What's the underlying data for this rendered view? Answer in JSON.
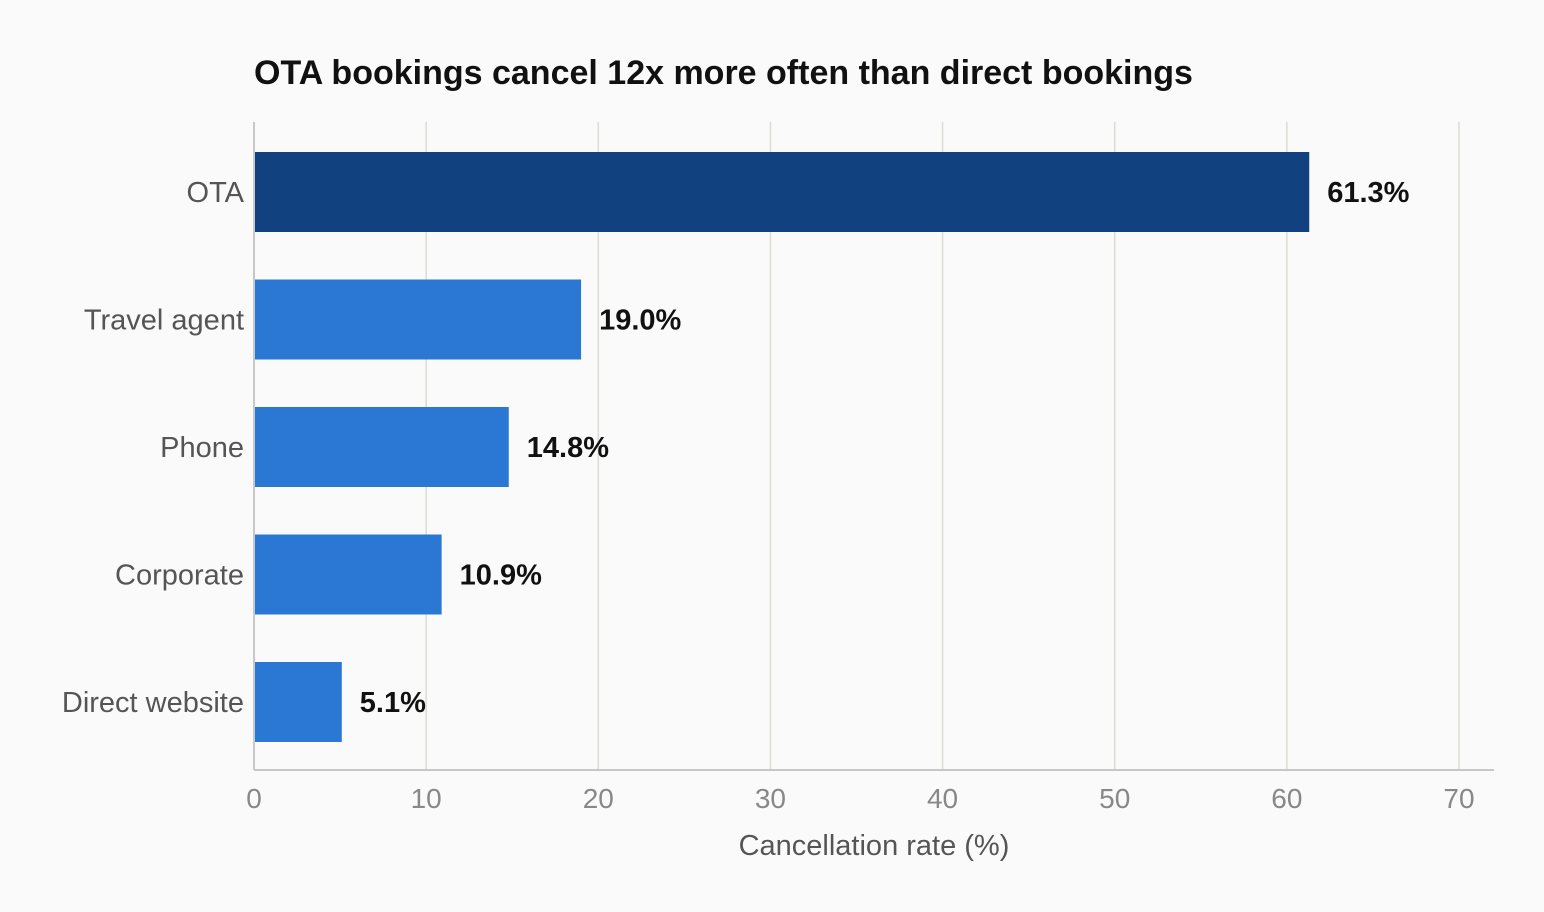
{
  "chart_data": {
    "type": "bar",
    "orientation": "horizontal",
    "title": "OTA bookings cancel 12x more often than direct bookings",
    "xlabel": "Cancellation rate (%)",
    "ylabel": "",
    "xlim": [
      0,
      70
    ],
    "xticks": [
      0,
      10,
      20,
      30,
      40,
      50,
      60,
      70
    ],
    "grid": true,
    "categories": [
      "OTA",
      "Travel agent",
      "Phone",
      "Corporate",
      "Direct website"
    ],
    "values": [
      61.3,
      19.0,
      14.8,
      10.9,
      5.1
    ],
    "value_labels": [
      "61.3%",
      "19.0%",
      "14.8%",
      "10.9%",
      "5.1%"
    ],
    "colors": [
      "#12417f",
      "#2a78d4",
      "#2a78d4",
      "#2a78d4",
      "#2a78d4"
    ],
    "grid_color": "#dddbd3",
    "axis_color": "#c8c8c8"
  }
}
